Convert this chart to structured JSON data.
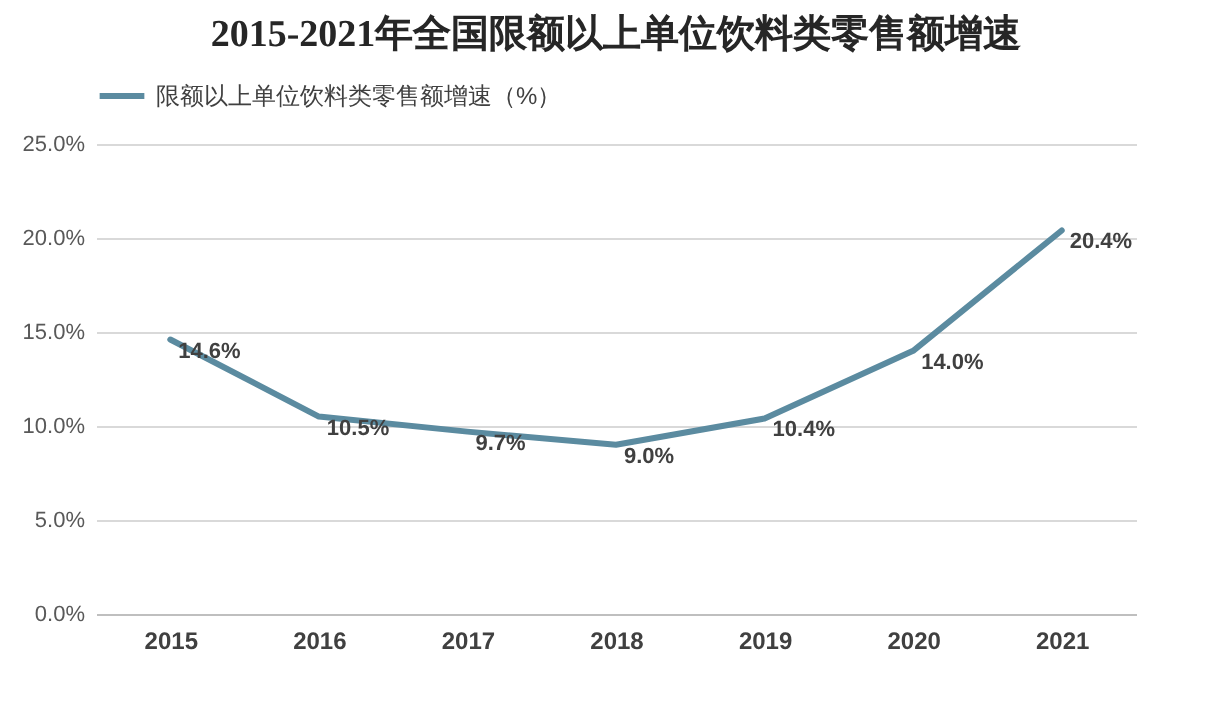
{
  "chart_data": {
    "type": "line",
    "title": "2015-2021年全国限额以上单位饮料类零售额增速",
    "categories": [
      "2015",
      "2016",
      "2017",
      "2018",
      "2019",
      "2020",
      "2021"
    ],
    "series": [
      {
        "name": "限额以上单位饮料类零售额增速（%）",
        "color": "#5b8ba0",
        "values": [
          14.6,
          10.5,
          9.7,
          9.0,
          10.4,
          14.0,
          20.4
        ],
        "value_labels": [
          "14.6%",
          "10.5%",
          "9.7%",
          "9.0%",
          "10.4%",
          "14.0%",
          "20.4%"
        ]
      }
    ],
    "ylim": [
      0,
      25
    ],
    "yticks": [
      {
        "value": 0,
        "label": "0.0%"
      },
      {
        "value": 5,
        "label": "5.0%"
      },
      {
        "value": 10,
        "label": "10.0%"
      },
      {
        "value": 15,
        "label": "15.0%"
      },
      {
        "value": 20,
        "label": "20.0%"
      },
      {
        "value": 25,
        "label": "25.0%"
      }
    ],
    "grid": "y",
    "legend": "top",
    "marker": "none",
    "line_style": "solid"
  }
}
